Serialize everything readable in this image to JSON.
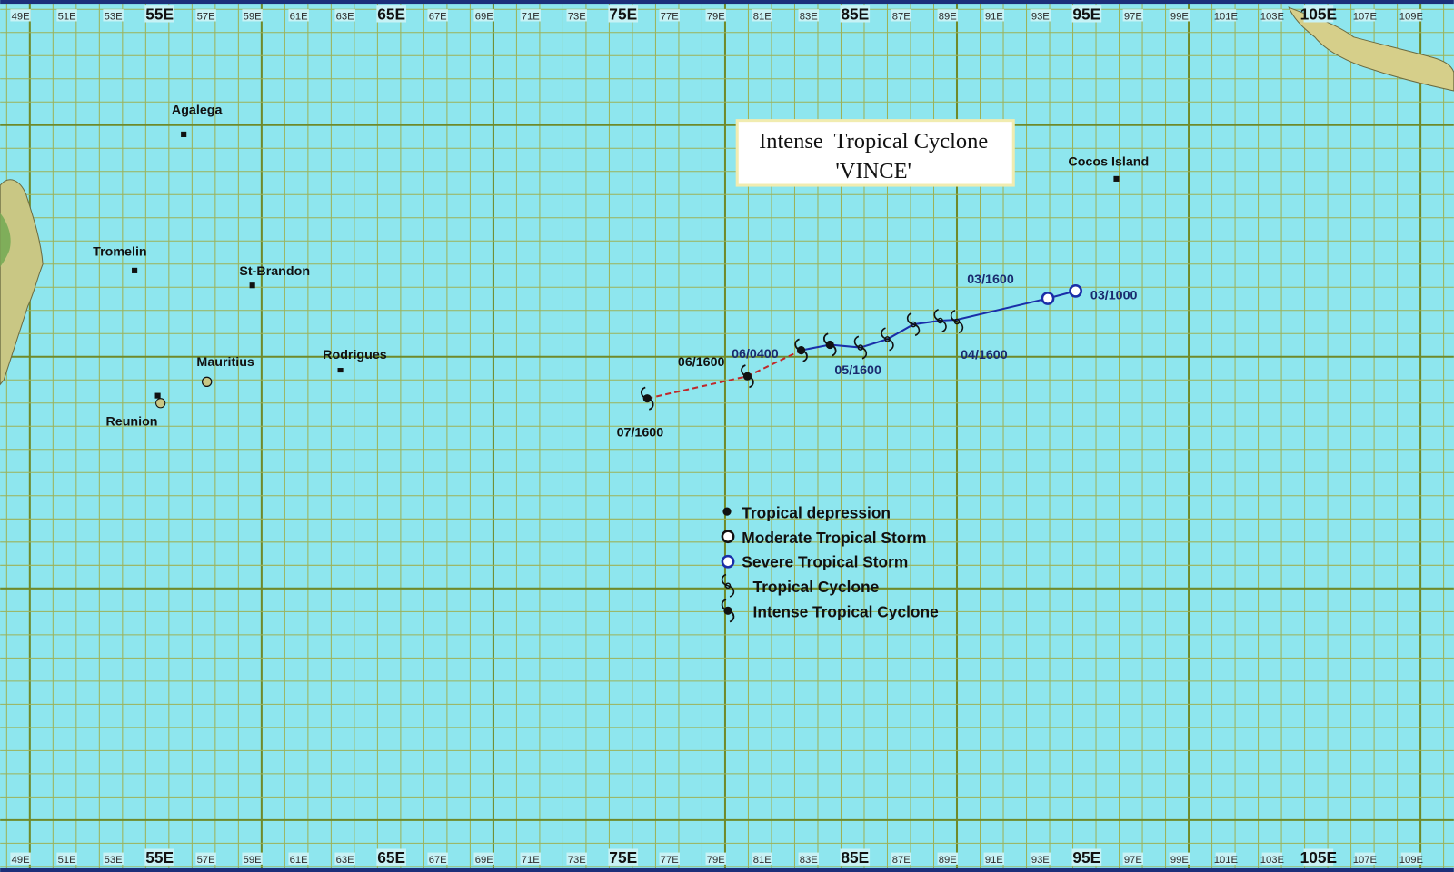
{
  "map": {
    "title": {
      "line1": "Intense  Tropical Cyclone",
      "line2": "'VINCE'"
    },
    "longitude_labels": [
      "49E",
      "51E",
      "53E",
      "55E",
      "57E",
      "59E",
      "61E",
      "63E",
      "65E",
      "67E",
      "69E",
      "71E",
      "73E",
      "75E",
      "77E",
      "79E",
      "81E",
      "83E",
      "85E",
      "87E",
      "89E",
      "91E",
      "93E",
      "95E",
      "97E",
      "99E",
      "101E",
      "103E",
      "105E",
      "107E",
      "109E"
    ],
    "places": [
      "Agalega",
      "Tromelin",
      "St-Brandon",
      "Mauritius",
      "Rodrigues",
      "Reunion",
      "Cocos Island"
    ],
    "track_labels": [
      "03/1000",
      "03/1600",
      "04/1600",
      "05/1600",
      "06/0400",
      "06/1600",
      "07/1600"
    ],
    "legend": [
      "Tropical depression",
      "Moderate Tropical Storm",
      "Severe Tropical Storm",
      "Tropical Cyclone",
      "Intense Tropical Cyclone"
    ]
  }
}
